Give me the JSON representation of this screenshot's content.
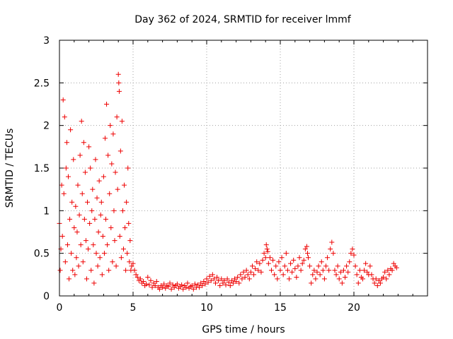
{
  "chart_data": {
    "type": "scatter",
    "title": "Day 362 of 2024, SRMTID for receiver lmmf",
    "xlabel": "GPS time / hours",
    "ylabel": "SRMTID / TECUs",
    "xlim": [
      0,
      25
    ],
    "ylim": [
      0,
      3
    ],
    "xticks": [
      0,
      5,
      10,
      15,
      20
    ],
    "xtick_labels": [
      "0",
      "5",
      "10",
      "15",
      "20"
    ],
    "yticks": [
      0,
      0.5,
      1,
      1.5,
      2,
      2.5,
      3
    ],
    "ytick_labels": [
      "0",
      "0.5",
      "1",
      "1.5",
      "2",
      "2.5",
      "3"
    ],
    "grid": true,
    "marker": "+",
    "marker_color": "#ee0000",
    "series": [
      {
        "name": "SRMTID",
        "points": [
          [
            0.0,
            0.85
          ],
          [
            0.05,
            0.3
          ],
          [
            0.1,
            0.55
          ],
          [
            0.15,
            1.3
          ],
          [
            0.2,
            0.7
          ],
          [
            0.25,
            2.3
          ],
          [
            0.3,
            1.2
          ],
          [
            0.35,
            2.1
          ],
          [
            0.4,
            0.4
          ],
          [
            0.45,
            1.5
          ],
          [
            0.5,
            1.8
          ],
          [
            0.55,
            0.6
          ],
          [
            0.6,
            1.4
          ],
          [
            0.65,
            0.2
          ],
          [
            0.7,
            0.9
          ],
          [
            0.75,
            1.95
          ],
          [
            0.8,
            0.5
          ],
          [
            0.85,
            1.1
          ],
          [
            0.9,
            0.3
          ],
          [
            0.95,
            1.6
          ],
          [
            1.0,
            0.8
          ],
          [
            1.05,
            0.25
          ],
          [
            1.1,
            1.05
          ],
          [
            1.15,
            0.45
          ],
          [
            1.2,
            0.75
          ],
          [
            1.25,
            1.3
          ],
          [
            1.3,
            0.35
          ],
          [
            1.35,
            0.95
          ],
          [
            1.4,
            1.65
          ],
          [
            1.45,
            0.6
          ],
          [
            1.5,
            2.05
          ],
          [
            1.55,
            1.2
          ],
          [
            1.6,
            0.4
          ],
          [
            1.65,
            1.8
          ],
          [
            1.7,
            0.9
          ],
          [
            1.75,
            1.45
          ],
          [
            1.8,
            0.65
          ],
          [
            1.85,
            0.2
          ],
          [
            1.9,
            1.1
          ],
          [
            1.95,
            0.55
          ],
          [
            2.0,
            1.75
          ],
          [
            2.05,
            0.85
          ],
          [
            2.1,
            1.5
          ],
          [
            2.15,
            0.3
          ],
          [
            2.2,
            1.0
          ],
          [
            2.25,
            1.25
          ],
          [
            2.3,
            0.6
          ],
          [
            2.35,
            0.15
          ],
          [
            2.4,
            0.9
          ],
          [
            2.45,
            1.6
          ],
          [
            2.5,
            0.5
          ],
          [
            2.55,
            1.15
          ],
          [
            2.6,
            0.35
          ],
          [
            2.65,
            0.75
          ],
          [
            2.7,
            1.35
          ],
          [
            2.75,
            0.45
          ],
          [
            2.8,
            0.95
          ],
          [
            2.85,
            1.1
          ],
          [
            2.9,
            0.25
          ],
          [
            2.95,
            0.7
          ],
          [
            3.0,
            1.4
          ],
          [
            3.05,
            0.5
          ],
          [
            3.1,
            1.85
          ],
          [
            3.15,
            0.9
          ],
          [
            3.2,
            2.25
          ],
          [
            3.25,
            0.6
          ],
          [
            3.3,
            1.65
          ],
          [
            3.35,
            0.3
          ],
          [
            3.4,
            1.2
          ],
          [
            3.45,
            2.0
          ],
          [
            3.5,
            0.8
          ],
          [
            3.55,
            1.55
          ],
          [
            3.6,
            0.4
          ],
          [
            3.65,
            1.9
          ],
          [
            3.7,
            1.0
          ],
          [
            3.75,
            0.65
          ],
          [
            3.8,
            1.45
          ],
          [
            3.85,
            0.35
          ],
          [
            3.9,
            2.1
          ],
          [
            3.95,
            1.25
          ],
          [
            4.0,
            2.6
          ],
          [
            4.03,
            2.5
          ],
          [
            4.06,
            2.4
          ],
          [
            4.1,
            0.7
          ],
          [
            4.15,
            1.7
          ],
          [
            4.2,
            0.45
          ],
          [
            4.25,
            2.05
          ],
          [
            4.3,
            1.0
          ],
          [
            4.35,
            0.55
          ],
          [
            4.4,
            1.3
          ],
          [
            4.45,
            0.8
          ],
          [
            4.5,
            0.3
          ],
          [
            4.55,
            1.1
          ],
          [
            4.6,
            0.5
          ],
          [
            4.65,
            1.5
          ],
          [
            4.7,
            0.85
          ],
          [
            4.75,
            0.4
          ],
          [
            4.8,
            0.65
          ],
          [
            4.85,
            0.3
          ],
          [
            4.9,
            0.35
          ],
          [
            5.0,
            0.38
          ],
          [
            5.1,
            0.3
          ],
          [
            5.2,
            0.25
          ],
          [
            5.3,
            0.22
          ],
          [
            5.4,
            0.18
          ],
          [
            5.5,
            0.2
          ],
          [
            5.6,
            0.15
          ],
          [
            5.7,
            0.17
          ],
          [
            5.8,
            0.12
          ],
          [
            5.9,
            0.14
          ],
          [
            6.0,
            0.22
          ],
          [
            6.1,
            0.13
          ],
          [
            6.2,
            0.18
          ],
          [
            6.3,
            0.1
          ],
          [
            6.4,
            0.15
          ],
          [
            6.5,
            0.12
          ],
          [
            6.6,
            0.17
          ],
          [
            6.7,
            0.1
          ],
          [
            6.8,
            0.08
          ],
          [
            6.9,
            0.12
          ],
          [
            7.0,
            0.1
          ],
          [
            7.1,
            0.14
          ],
          [
            7.2,
            0.09
          ],
          [
            7.3,
            0.12
          ],
          [
            7.4,
            0.11
          ],
          [
            7.5,
            0.15
          ],
          [
            7.6,
            0.08
          ],
          [
            7.7,
            0.13
          ],
          [
            7.8,
            0.1
          ],
          [
            7.9,
            0.12
          ],
          [
            8.0,
            0.14
          ],
          [
            8.1,
            0.09
          ],
          [
            8.2,
            0.11
          ],
          [
            8.3,
            0.13
          ],
          [
            8.4,
            0.08
          ],
          [
            8.5,
            0.12
          ],
          [
            8.6,
            0.1
          ],
          [
            8.7,
            0.15
          ],
          [
            8.8,
            0.09
          ],
          [
            8.9,
            0.11
          ],
          [
            9.0,
            0.12
          ],
          [
            9.1,
            0.08
          ],
          [
            9.2,
            0.14
          ],
          [
            9.3,
            0.1
          ],
          [
            9.4,
            0.13
          ],
          [
            9.5,
            0.1
          ],
          [
            9.6,
            0.15
          ],
          [
            9.7,
            0.12
          ],
          [
            9.8,
            0.17
          ],
          [
            9.9,
            0.14
          ],
          [
            10.0,
            0.2
          ],
          [
            10.1,
            0.16
          ],
          [
            10.2,
            0.23
          ],
          [
            10.3,
            0.18
          ],
          [
            10.4,
            0.25
          ],
          [
            10.5,
            0.2
          ],
          [
            10.6,
            0.15
          ],
          [
            10.7,
            0.22
          ],
          [
            10.8,
            0.18
          ],
          [
            10.9,
            0.12
          ],
          [
            11.0,
            0.2
          ],
          [
            11.1,
            0.15
          ],
          [
            11.2,
            0.18
          ],
          [
            11.3,
            0.13
          ],
          [
            11.4,
            0.2
          ],
          [
            11.5,
            0.16
          ],
          [
            11.6,
            0.12
          ],
          [
            11.7,
            0.18
          ],
          [
            11.8,
            0.15
          ],
          [
            11.9,
            0.2
          ],
          [
            12.0,
            0.17
          ],
          [
            12.1,
            0.22
          ],
          [
            12.2,
            0.15
          ],
          [
            12.3,
            0.25
          ],
          [
            12.4,
            0.2
          ],
          [
            12.5,
            0.28
          ],
          [
            12.6,
            0.22
          ],
          [
            12.7,
            0.3
          ],
          [
            12.8,
            0.25
          ],
          [
            12.9,
            0.2
          ],
          [
            13.0,
            0.28
          ],
          [
            13.1,
            0.35
          ],
          [
            13.2,
            0.25
          ],
          [
            13.3,
            0.32
          ],
          [
            13.4,
            0.4
          ],
          [
            13.5,
            0.3
          ],
          [
            13.6,
            0.38
          ],
          [
            13.7,
            0.28
          ],
          [
            13.8,
            0.42
          ],
          [
            13.9,
            0.5
          ],
          [
            14.0,
            0.45
          ],
          [
            14.05,
            0.6
          ],
          [
            14.1,
            0.55
          ],
          [
            14.15,
            0.52
          ],
          [
            14.2,
            0.38
          ],
          [
            14.3,
            0.45
          ],
          [
            14.4,
            0.3
          ],
          [
            14.5,
            0.42
          ],
          [
            14.6,
            0.25
          ],
          [
            14.7,
            0.35
          ],
          [
            14.8,
            0.2
          ],
          [
            14.9,
            0.4
          ],
          [
            15.0,
            0.3
          ],
          [
            15.1,
            0.45
          ],
          [
            15.2,
            0.25
          ],
          [
            15.3,
            0.35
          ],
          [
            15.4,
            0.5
          ],
          [
            15.5,
            0.3
          ],
          [
            15.6,
            0.2
          ],
          [
            15.7,
            0.38
          ],
          [
            15.8,
            0.28
          ],
          [
            15.9,
            0.42
          ],
          [
            16.0,
            0.32
          ],
          [
            16.1,
            0.22
          ],
          [
            16.2,
            0.35
          ],
          [
            16.3,
            0.45
          ],
          [
            16.4,
            0.3
          ],
          [
            16.5,
            0.38
          ],
          [
            16.6,
            0.42
          ],
          [
            16.7,
            0.55
          ],
          [
            16.8,
            0.58
          ],
          [
            16.85,
            0.5
          ],
          [
            16.9,
            0.45
          ],
          [
            17.0,
            0.35
          ],
          [
            17.1,
            0.15
          ],
          [
            17.2,
            0.25
          ],
          [
            17.3,
            0.3
          ],
          [
            17.4,
            0.2
          ],
          [
            17.5,
            0.28
          ],
          [
            17.6,
            0.35
          ],
          [
            17.7,
            0.25
          ],
          [
            17.8,
            0.4
          ],
          [
            17.9,
            0.3
          ],
          [
            18.0,
            0.2
          ],
          [
            18.1,
            0.35
          ],
          [
            18.2,
            0.45
          ],
          [
            18.3,
            0.3
          ],
          [
            18.4,
            0.55
          ],
          [
            18.5,
            0.63
          ],
          [
            18.6,
            0.5
          ],
          [
            18.7,
            0.3
          ],
          [
            18.8,
            0.25
          ],
          [
            18.9,
            0.35
          ],
          [
            19.0,
            0.2
          ],
          [
            19.1,
            0.28
          ],
          [
            19.2,
            0.15
          ],
          [
            19.3,
            0.3
          ],
          [
            19.4,
            0.22
          ],
          [
            19.5,
            0.35
          ],
          [
            19.6,
            0.28
          ],
          [
            19.7,
            0.4
          ],
          [
            19.8,
            0.5
          ],
          [
            19.9,
            0.55
          ],
          [
            20.0,
            0.48
          ],
          [
            20.1,
            0.35
          ],
          [
            20.2,
            0.25
          ],
          [
            20.3,
            0.15
          ],
          [
            20.4,
            0.3
          ],
          [
            20.5,
            0.22
          ],
          [
            20.6,
            0.2
          ],
          [
            20.7,
            0.3
          ],
          [
            20.8,
            0.38
          ],
          [
            20.9,
            0.28
          ],
          [
            21.0,
            0.25
          ],
          [
            21.1,
            0.35
          ],
          [
            21.2,
            0.25
          ],
          [
            21.3,
            0.2
          ],
          [
            21.4,
            0.15
          ],
          [
            21.5,
            0.2
          ],
          [
            21.6,
            0.12
          ],
          [
            21.7,
            0.18
          ],
          [
            21.8,
            0.15
          ],
          [
            21.9,
            0.2
          ],
          [
            22.0,
            0.22
          ],
          [
            22.1,
            0.28
          ],
          [
            22.2,
            0.2
          ],
          [
            22.3,
            0.3
          ],
          [
            22.4,
            0.25
          ],
          [
            22.5,
            0.32
          ],
          [
            22.6,
            0.3
          ],
          [
            22.7,
            0.38
          ],
          [
            22.8,
            0.35
          ],
          [
            22.9,
            0.33
          ]
        ]
      }
    ]
  }
}
